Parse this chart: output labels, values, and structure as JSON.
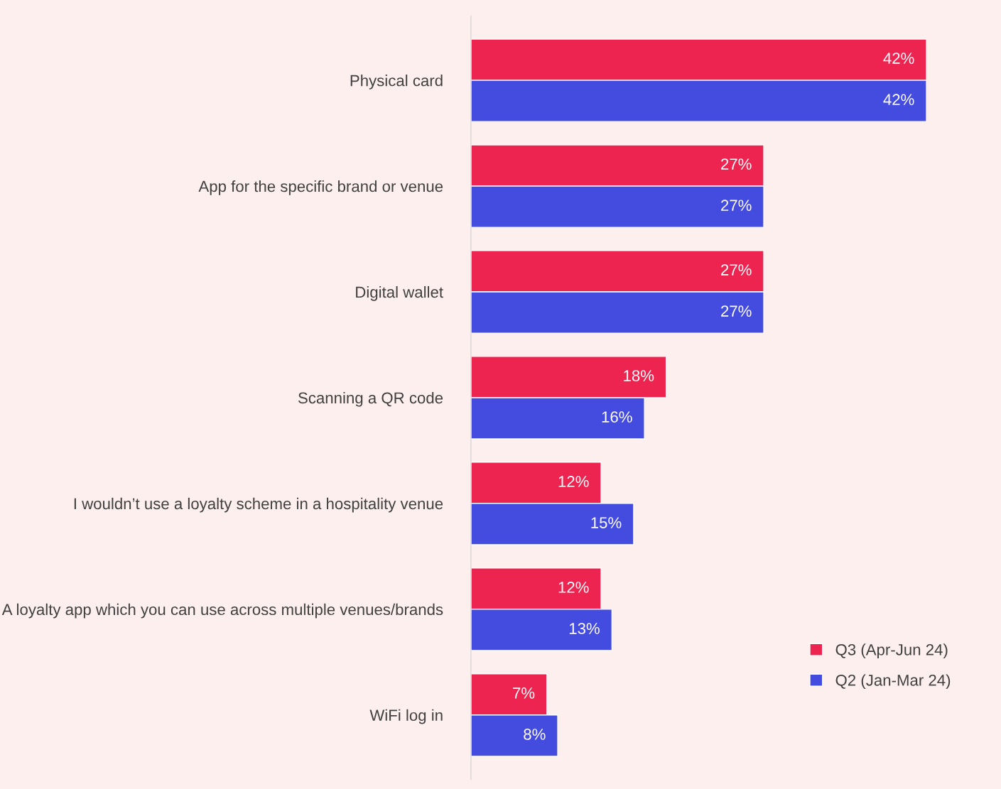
{
  "chart_data": {
    "type": "bar",
    "orientation": "horizontal",
    "categories": [
      "Physical card",
      "App for the specific brand or venue",
      "Digital wallet",
      "Scanning a QR code",
      "I wouldn’t use a loyalty scheme in a hospitality venue",
      "A loyalty app which you can use across multiple venues/brands",
      "WiFi log in"
    ],
    "series": [
      {
        "name": "Q3 (Apr-Jun 24)",
        "color": "#ee2450",
        "values": [
          42,
          27,
          27,
          18,
          12,
          12,
          7
        ],
        "value_labels": [
          "42%",
          "27%",
          "27%",
          "18%",
          "12%",
          "12%",
          "7%"
        ]
      },
      {
        "name": "Q2 (Jan-Mar 24)",
        "color": "#444bdf",
        "values": [
          42,
          27,
          27,
          16,
          15,
          13,
          8
        ],
        "value_labels": [
          "42%",
          "27%",
          "27%",
          "16%",
          "15%",
          "13%",
          "8%"
        ]
      }
    ],
    "legend": "bottom right",
    "grid": false,
    "tick_labels": "y"
  }
}
